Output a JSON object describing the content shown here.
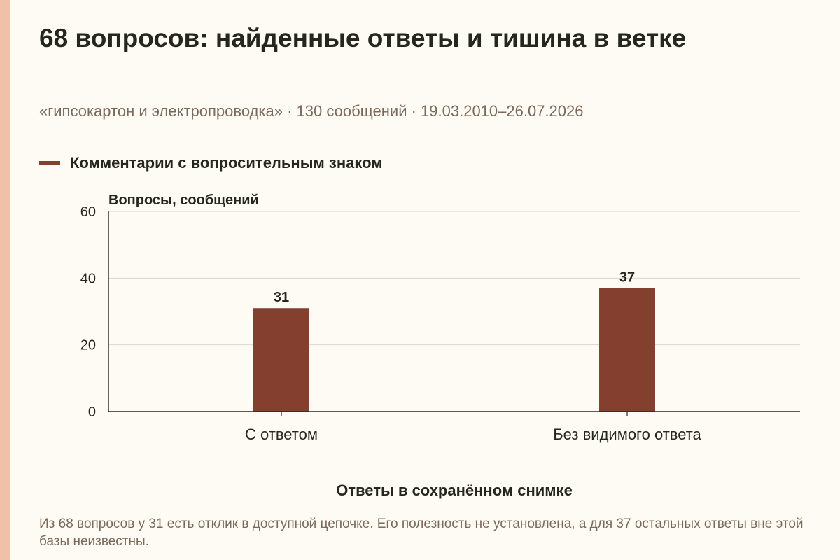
{
  "header": {
    "title": "68 вопросов: найденные ответы и тишина в ветке",
    "subtitle": "«гипсокартон и электропроводка» · 130 сообщений · 19.03.2010–26.07.2026"
  },
  "chart_data": {
    "type": "bar",
    "categories": [
      "С ответом",
      "Без видимого ответа"
    ],
    "series": [
      {
        "name": "Комментарии с вопросительным знаком",
        "values": [
          31,
          37
        ],
        "color": "#843f2f"
      }
    ],
    "ylabel": "Вопросы, сообщений",
    "xlabel": "Ответы в сохранённом снимке",
    "ylim": [
      0,
      60
    ],
    "yticks": [
      0,
      20,
      40,
      60
    ],
    "grid": true,
    "legend_position": "top-left",
    "data_labels": true
  },
  "footnote": "Из 68 вопросов у 31 есть отклик в доступной цепочке. Его полезность не установлена, а для 37 остальных ответы вне этой базы неизвестны."
}
